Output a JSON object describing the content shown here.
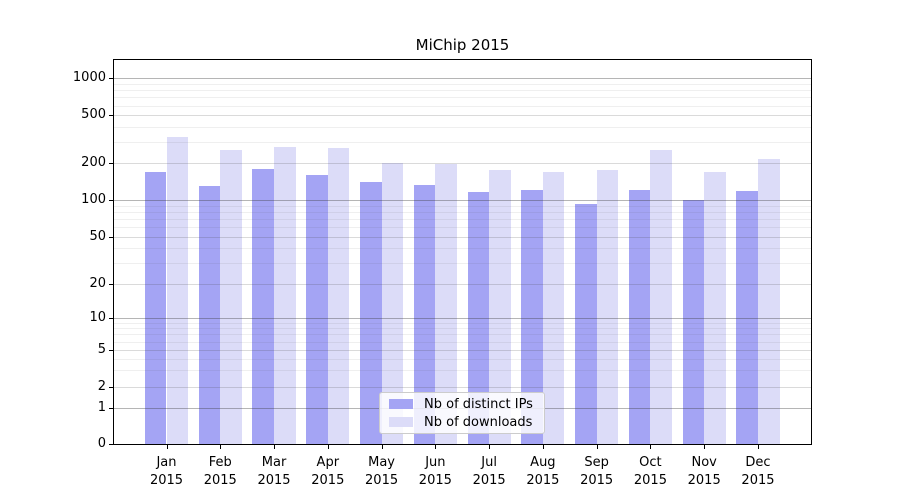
{
  "title": "MiChip 2015",
  "chart_data": {
    "type": "bar",
    "title": "MiChip 2015",
    "y_scale": "symlog",
    "ylim": [
      0,
      1400
    ],
    "grid": true,
    "legend_position": "lower center",
    "y_ticks": [
      0,
      1,
      2,
      5,
      10,
      20,
      50,
      100,
      200,
      500,
      1000
    ],
    "categories": [
      "Jan",
      "Feb",
      "Mar",
      "Apr",
      "May",
      "Jun",
      "Jul",
      "Aug",
      "Sep",
      "Oct",
      "Nov",
      "Dec"
    ],
    "category_sublabel": "2015",
    "series": [
      {
        "name": "Nb of distinct IPs",
        "color": "#a4a4f4",
        "values": [
          171,
          130,
          179,
          160,
          141,
          132,
          116,
          122,
          93,
          121,
          101,
          118
        ]
      },
      {
        "name": "Nb of downloads",
        "color": "#dcdcf8",
        "values": [
          333,
          258,
          274,
          270,
          202,
          198,
          177,
          170,
          178,
          256,
          171,
          216
        ]
      }
    ]
  }
}
